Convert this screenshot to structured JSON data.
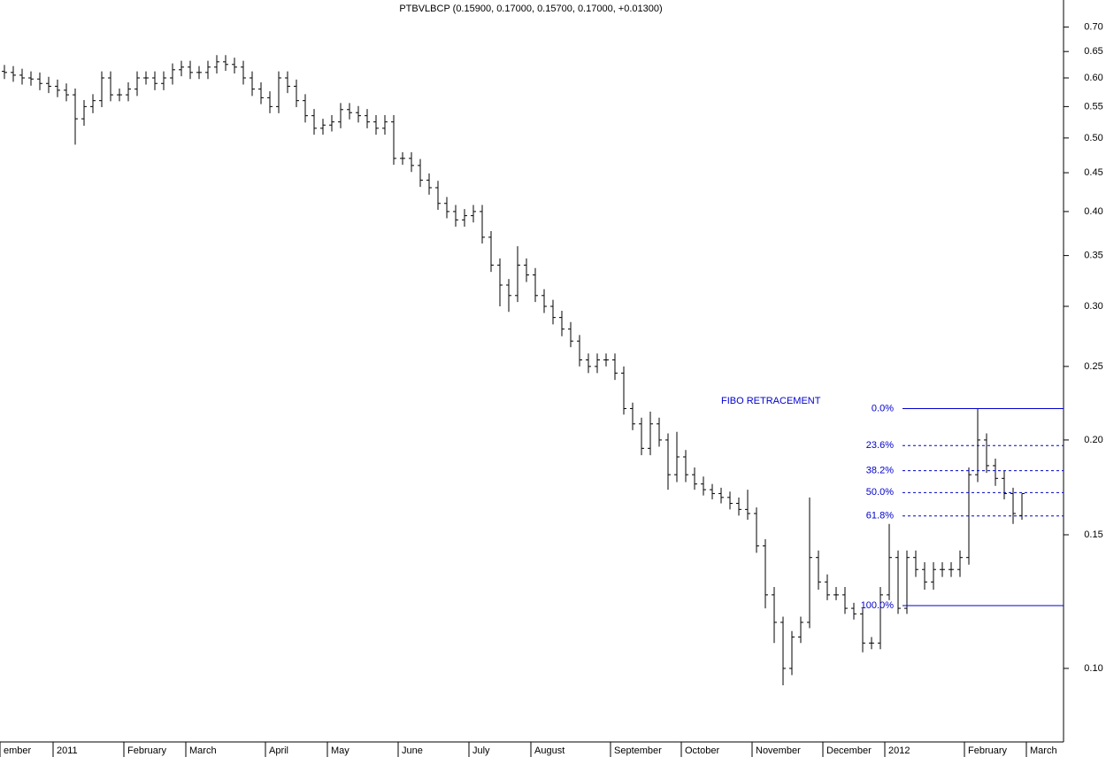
{
  "chart_data": {
    "type": "ohlc",
    "title": "PTBVLBCP (0.15900, 0.17000, 0.15700, 0.17000, +0.01300)",
    "log_scale": true,
    "color": "#000000",
    "ylim": [
      0.08,
      0.76
    ],
    "yticks": [
      {
        "value": 0.1,
        "label": "0.10"
      },
      {
        "value": 0.15,
        "label": "0.15"
      },
      {
        "value": 0.2,
        "label": "0.20"
      },
      {
        "value": 0.25,
        "label": "0.25"
      },
      {
        "value": 0.3,
        "label": "0.30"
      },
      {
        "value": 0.35,
        "label": "0.35"
      },
      {
        "value": 0.4,
        "label": "0.40"
      },
      {
        "value": 0.45,
        "label": "0.45"
      },
      {
        "value": 0.5,
        "label": "0.50"
      },
      {
        "value": 0.55,
        "label": "0.55"
      },
      {
        "value": 0.6,
        "label": "0.60"
      },
      {
        "value": 0.65,
        "label": "0.65"
      },
      {
        "value": 0.7,
        "label": "0.70"
      }
    ],
    "categories": [
      "ember",
      null,
      null,
      null,
      null,
      null,
      "2011",
      null,
      null,
      null,
      null,
      null,
      null,
      null,
      "February",
      null,
      null,
      null,
      null,
      null,
      null,
      "March",
      null,
      null,
      null,
      null,
      null,
      null,
      null,
      null,
      "April",
      null,
      null,
      null,
      null,
      null,
      null,
      "May",
      null,
      null,
      null,
      null,
      null,
      null,
      null,
      "June",
      null,
      null,
      null,
      null,
      null,
      null,
      null,
      "July",
      null,
      null,
      null,
      null,
      null,
      null,
      "August",
      null,
      null,
      null,
      null,
      null,
      null,
      null,
      null,
      "September",
      null,
      null,
      null,
      null,
      null,
      null,
      null,
      "October",
      null,
      null,
      null,
      null,
      null,
      null,
      null,
      "November",
      null,
      null,
      null,
      null,
      null,
      null,
      null,
      "December",
      null,
      null,
      null,
      null,
      null,
      null,
      "2012",
      null,
      null,
      null,
      null,
      null,
      null,
      null,
      null,
      "February",
      null,
      null,
      null,
      null,
      null,
      null,
      "March",
      null,
      null,
      null
    ],
    "open": [
      0.612,
      0.61,
      0.605,
      0.6,
      0.598,
      0.59,
      0.585,
      0.578,
      0.57,
      0.53,
      0.55,
      0.56,
      0.6,
      0.57,
      0.57,
      0.58,
      0.6,
      0.6,
      0.59,
      0.6,
      0.615,
      0.62,
      0.61,
      0.61,
      0.62,
      0.63,
      0.625,
      0.62,
      0.6,
      0.58,
      0.565,
      0.55,
      0.6,
      0.585,
      0.56,
      0.535,
      0.515,
      0.52,
      0.525,
      0.545,
      0.54,
      0.535,
      0.525,
      0.515,
      0.525,
      0.47,
      0.47,
      0.46,
      0.44,
      0.43,
      0.41,
      0.4,
      0.39,
      0.395,
      0.4,
      0.37,
      0.34,
      0.32,
      0.31,
      0.34,
      0.33,
      0.31,
      0.3,
      0.29,
      0.28,
      0.27,
      0.255,
      0.25,
      0.255,
      0.255,
      0.245,
      0.22,
      0.21,
      0.195,
      0.21,
      0.2,
      0.18,
      0.19,
      0.18,
      0.175,
      0.172,
      0.17,
      0.168,
      0.165,
      0.162,
      0.16,
      0.145,
      0.125,
      0.115,
      0.1,
      0.11,
      0.115,
      0.14,
      0.13,
      0.125,
      0.125,
      0.12,
      0.118,
      0.108,
      0.108,
      0.125,
      0.14,
      0.12,
      0.14,
      0.135,
      0.13,
      0.135,
      0.135,
      0.135,
      0.14,
      0.18,
      0.2,
      0.185,
      0.178,
      0.17,
      0.159,
      null,
      null,
      null,
      null
    ],
    "high": [
      0.624,
      0.622,
      0.617,
      0.612,
      0.61,
      0.602,
      0.597,
      0.59,
      0.581,
      0.561,
      0.571,
      0.612,
      0.612,
      0.581,
      0.592,
      0.612,
      0.612,
      0.612,
      0.612,
      0.627,
      0.632,
      0.632,
      0.622,
      0.632,
      0.643,
      0.643,
      0.638,
      0.632,
      0.612,
      0.592,
      0.576,
      0.612,
      0.612,
      0.597,
      0.571,
      0.546,
      0.53,
      0.536,
      0.556,
      0.556,
      0.551,
      0.546,
      0.536,
      0.536,
      0.536,
      0.479,
      0.479,
      0.469,
      0.449,
      0.439,
      0.418,
      0.408,
      0.403,
      0.408,
      0.408,
      0.377,
      0.347,
      0.326,
      0.36,
      0.347,
      0.337,
      0.316,
      0.306,
      0.296,
      0.286,
      0.275,
      0.26,
      0.26,
      0.26,
      0.26,
      0.25,
      0.224,
      0.214,
      0.218,
      0.214,
      0.204,
      0.205,
      0.194,
      0.184,
      0.179,
      0.175,
      0.173,
      0.171,
      0.168,
      0.172,
      0.163,
      0.148,
      0.128,
      0.117,
      0.112,
      0.117,
      0.168,
      0.143,
      0.133,
      0.128,
      0.128,
      0.122,
      0.12,
      0.11,
      0.128,
      0.155,
      0.143,
      0.143,
      0.143,
      0.138,
      0.138,
      0.138,
      0.138,
      0.143,
      0.184,
      0.22,
      0.204,
      0.189,
      0.182,
      0.173,
      0.17,
      null,
      null,
      null,
      null
    ],
    "low": [
      0.598,
      0.593,
      0.588,
      0.586,
      0.578,
      0.573,
      0.566,
      0.559,
      0.49,
      0.519,
      0.539,
      0.549,
      0.559,
      0.559,
      0.559,
      0.568,
      0.588,
      0.578,
      0.578,
      0.588,
      0.603,
      0.598,
      0.598,
      0.598,
      0.608,
      0.613,
      0.608,
      0.588,
      0.568,
      0.554,
      0.539,
      0.539,
      0.573,
      0.549,
      0.524,
      0.505,
      0.505,
      0.51,
      0.515,
      0.529,
      0.524,
      0.515,
      0.505,
      0.505,
      0.461,
      0.461,
      0.451,
      0.431,
      0.421,
      0.402,
      0.392,
      0.382,
      0.382,
      0.387,
      0.363,
      0.333,
      0.3,
      0.295,
      0.304,
      0.323,
      0.304,
      0.294,
      0.284,
      0.274,
      0.265,
      0.25,
      0.245,
      0.245,
      0.25,
      0.24,
      0.216,
      0.206,
      0.191,
      0.191,
      0.196,
      0.172,
      0.176,
      0.176,
      0.172,
      0.169,
      0.167,
      0.165,
      0.162,
      0.159,
      0.157,
      0.142,
      0.12,
      0.108,
      0.095,
      0.098,
      0.108,
      0.113,
      0.127,
      0.123,
      0.123,
      0.118,
      0.116,
      0.105,
      0.106,
      0.106,
      0.123,
      0.118,
      0.118,
      0.132,
      0.127,
      0.127,
      0.132,
      0.132,
      0.132,
      0.137,
      0.176,
      0.181,
      0.174,
      0.167,
      0.155,
      0.157,
      null,
      null,
      null,
      null
    ],
    "close": [
      0.61,
      0.605,
      0.6,
      0.598,
      0.59,
      0.585,
      0.578,
      0.57,
      0.53,
      0.55,
      0.56,
      0.6,
      0.57,
      0.57,
      0.58,
      0.6,
      0.6,
      0.59,
      0.6,
      0.615,
      0.62,
      0.61,
      0.61,
      0.62,
      0.63,
      0.625,
      0.62,
      0.6,
      0.58,
      0.565,
      0.55,
      0.6,
      0.585,
      0.56,
      0.535,
      0.515,
      0.52,
      0.525,
      0.545,
      0.54,
      0.535,
      0.525,
      0.515,
      0.525,
      0.47,
      0.47,
      0.46,
      0.44,
      0.43,
      0.41,
      0.4,
      0.39,
      0.395,
      0.4,
      0.37,
      0.34,
      0.32,
      0.31,
      0.34,
      0.33,
      0.31,
      0.3,
      0.29,
      0.28,
      0.27,
      0.255,
      0.25,
      0.255,
      0.255,
      0.245,
      0.22,
      0.21,
      0.195,
      0.21,
      0.2,
      0.18,
      0.19,
      0.18,
      0.175,
      0.172,
      0.17,
      0.168,
      0.165,
      0.162,
      0.16,
      0.145,
      0.125,
      0.115,
      0.1,
      0.11,
      0.115,
      0.14,
      0.13,
      0.125,
      0.125,
      0.12,
      0.118,
      0.108,
      0.108,
      0.125,
      0.14,
      0.12,
      0.14,
      0.135,
      0.13,
      0.135,
      0.135,
      0.135,
      0.14,
      0.18,
      0.2,
      0.185,
      0.178,
      0.17,
      0.16,
      0.17,
      null,
      null,
      null,
      null
    ],
    "fibo": {
      "label": "FIBO RETRACEMENT",
      "color": "#0000cc",
      "high": 0.22,
      "low": 0.121,
      "levels": [
        {
          "value": 0,
          "label": "0.0%"
        },
        {
          "value": 23.6,
          "label": "23.6%"
        },
        {
          "value": 38.2,
          "label": "38.2%"
        },
        {
          "value": 50,
          "label": "50.0%"
        },
        {
          "value": 61.8,
          "label": "61.8%"
        },
        {
          "value": 100,
          "label": "100.0%"
        }
      ]
    }
  }
}
